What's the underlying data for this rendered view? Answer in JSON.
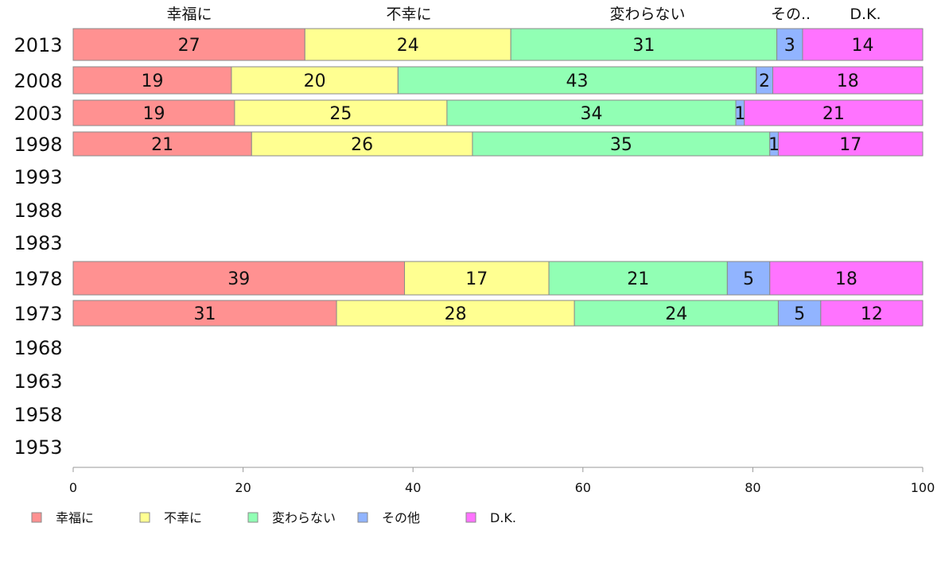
{
  "chart_data": {
    "type": "bar",
    "orientation": "horizontal",
    "stacked": true,
    "categories": [
      "2013",
      "2008",
      "2003",
      "1998",
      "1993",
      "1988",
      "1983",
      "1978",
      "1973",
      "1968",
      "1963",
      "1958",
      "1953"
    ],
    "top_labels": [
      "幸福に",
      "不幸に",
      "変わらない",
      "その..",
      "D.K."
    ],
    "series": [
      {
        "name": "幸福に",
        "color": "#ff9191",
        "values": [
          27,
          19,
          19,
          21,
          null,
          null,
          null,
          39,
          31,
          null,
          null,
          null,
          null
        ]
      },
      {
        "name": "不幸に",
        "color": "#ffff91",
        "values": [
          24,
          20,
          25,
          26,
          null,
          null,
          null,
          17,
          28,
          null,
          null,
          null,
          null
        ]
      },
      {
        "name": "変わらない",
        "color": "#91ffb4",
        "values": [
          31,
          43,
          34,
          35,
          null,
          null,
          null,
          21,
          24,
          null,
          null,
          null,
          null
        ]
      },
      {
        "name": "その他",
        "color": "#91b4ff",
        "values": [
          3,
          2,
          1,
          1,
          null,
          null,
          null,
          5,
          5,
          null,
          null,
          null,
          null
        ]
      },
      {
        "name": "D.K.",
        "color": "#ff73ff",
        "values": [
          14,
          18,
          21,
          17,
          null,
          null,
          null,
          18,
          12,
          null,
          null,
          null,
          null
        ]
      }
    ],
    "xlim": [
      0,
      100
    ],
    "xticks": [
      0,
      20,
      40,
      60,
      80,
      100
    ],
    "legend_position": "bottom-left",
    "grid": false,
    "title": "",
    "xlabel": "",
    "ylabel": ""
  }
}
